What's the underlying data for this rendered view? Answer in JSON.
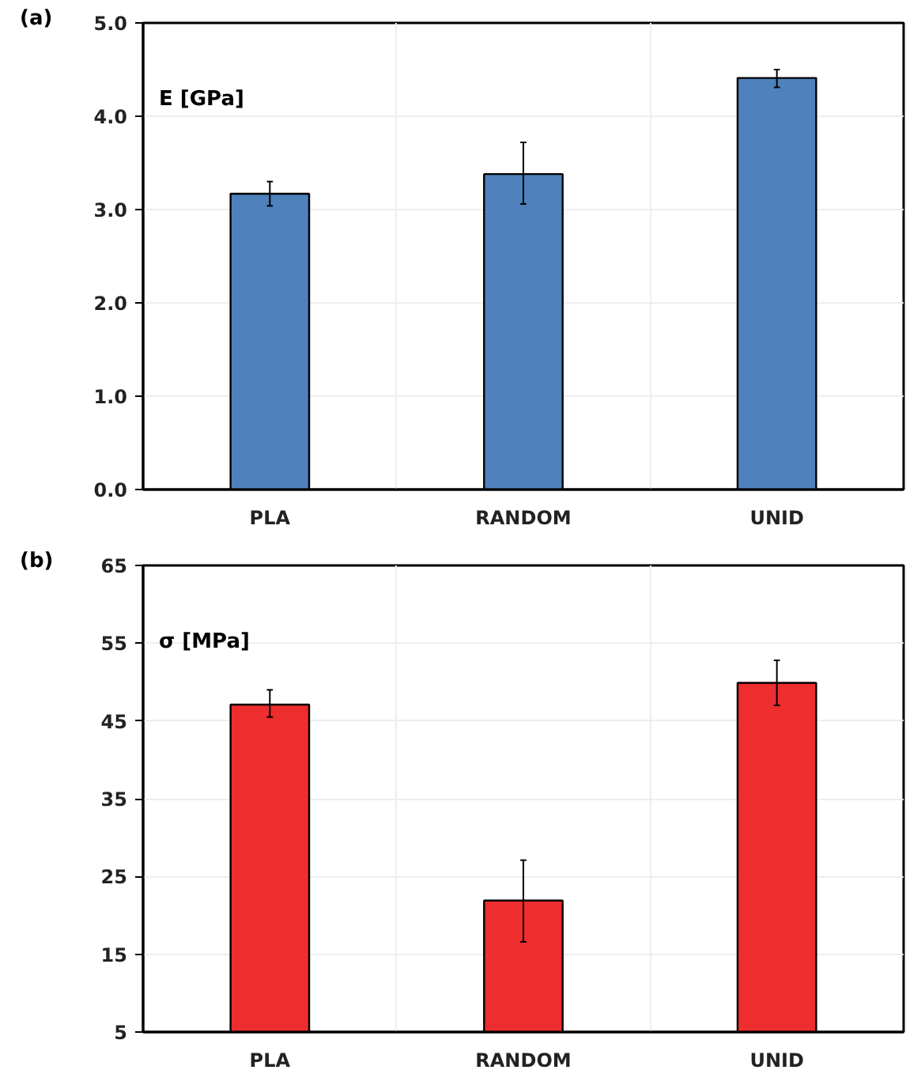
{
  "chart_data": [
    {
      "type": "bar",
      "title": "(a)",
      "ylabel": "E [GPa]",
      "categories": [
        "PLA",
        "RANDOM",
        "UNID"
      ],
      "values": [
        3.17,
        3.38,
        4.41
      ],
      "errors": [
        [
          3.04,
          3.3
        ],
        [
          3.06,
          3.72
        ],
        [
          4.31,
          4.5
        ]
      ],
      "color": "#4f81bd",
      "ylim": [
        0,
        5
      ],
      "yticks": [
        {
          "value": 0,
          "label": "0.0"
        },
        {
          "value": 1,
          "label": "1.0"
        },
        {
          "value": 2,
          "label": "2.0"
        },
        {
          "value": 3,
          "label": "3.0"
        },
        {
          "value": 4,
          "label": "4.0"
        },
        {
          "value": 5,
          "label": "5.0"
        }
      ],
      "grid": true
    },
    {
      "type": "bar",
      "title": "(b)",
      "ylabel": "σ [MPa]",
      "categories": [
        "PLA",
        "RANDOM",
        "UNID"
      ],
      "values": [
        47.1,
        21.9,
        49.9
      ],
      "errors": [
        [
          45.5,
          49
        ],
        [
          16.6,
          27.1
        ],
        [
          47,
          52.8
        ]
      ],
      "color": "#ed2d2e",
      "ylim": [
        5,
        65
      ],
      "yticks": [
        5,
        15,
        25,
        35,
        45,
        55,
        65
      ],
      "grid": true
    }
  ]
}
